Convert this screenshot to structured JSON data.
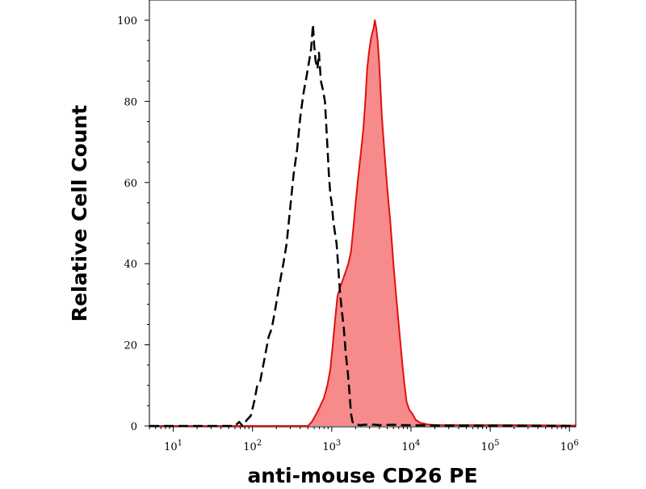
{
  "chart_data": {
    "type": "area",
    "xlabel": "anti-mouse CD26 PE",
    "ylabel": "Relative Cell Count",
    "x_scale": "log",
    "xlim": [
      5,
      1200000
    ],
    "ylim": [
      0,
      100
    ],
    "y_ticks": [
      0,
      20,
      40,
      60,
      80,
      100
    ],
    "x_ticks": [
      {
        "value": 10,
        "base": "10",
        "exp": "1"
      },
      {
        "value": 100,
        "base": "10",
        "exp": "2"
      },
      {
        "value": 1000,
        "base": "10",
        "exp": "3"
      },
      {
        "value": 10000,
        "base": "10",
        "exp": "4"
      },
      {
        "value": 100000,
        "base": "10",
        "exp": "5"
      },
      {
        "value": 1000000,
        "base": "10",
        "exp": "6"
      }
    ],
    "grid": false,
    "colors": {
      "stained_fill": "#f78a8a",
      "stained_line": "#e01010",
      "control_line": "#000000"
    },
    "series": [
      {
        "style": "dashed-outline",
        "points": [
          [
            5,
            0
          ],
          [
            60,
            0
          ],
          [
            68,
            1
          ],
          [
            75,
            0
          ],
          [
            85,
            1.5
          ],
          [
            95,
            2.5
          ],
          [
            105,
            6
          ],
          [
            115,
            10
          ],
          [
            125,
            11
          ],
          [
            140,
            16
          ],
          [
            160,
            22
          ],
          [
            175,
            24
          ],
          [
            195,
            29
          ],
          [
            215,
            34
          ],
          [
            245,
            40
          ],
          [
            270,
            45
          ],
          [
            300,
            54
          ],
          [
            330,
            62
          ],
          [
            365,
            68
          ],
          [
            400,
            76
          ],
          [
            440,
            82
          ],
          [
            480,
            86
          ],
          [
            520,
            90
          ],
          [
            550,
            93
          ],
          [
            580,
            99
          ],
          [
            600,
            94
          ],
          [
            625,
            90
          ],
          [
            660,
            88
          ],
          [
            690,
            92
          ],
          [
            730,
            85
          ],
          [
            770,
            83
          ],
          [
            820,
            80
          ],
          [
            870,
            71
          ],
          [
            920,
            62
          ],
          [
            960,
            57
          ],
          [
            1000,
            55
          ],
          [
            1040,
            51
          ],
          [
            1090,
            48
          ],
          [
            1150,
            45
          ],
          [
            1200,
            40
          ],
          [
            1270,
            33
          ],
          [
            1330,
            29
          ],
          [
            1420,
            24
          ],
          [
            1500,
            18
          ],
          [
            1600,
            13
          ],
          [
            1680,
            8
          ],
          [
            1750,
            3
          ],
          [
            1830,
            1
          ],
          [
            1950,
            0.4
          ],
          [
            2300,
            0.2
          ],
          [
            3000,
            0.4
          ],
          [
            4000,
            0.2
          ],
          [
            6000,
            0.3
          ],
          [
            8000,
            0.2
          ],
          [
            1200000,
            0
          ]
        ]
      },
      {
        "style": "filled",
        "points": [
          [
            5,
            0
          ],
          [
            500,
            0
          ],
          [
            560,
            1
          ],
          [
            640,
            3
          ],
          [
            720,
            5
          ],
          [
            800,
            7
          ],
          [
            880,
            10
          ],
          [
            960,
            14
          ],
          [
            1030,
            20
          ],
          [
            1100,
            26
          ],
          [
            1180,
            32
          ],
          [
            1270,
            34
          ],
          [
            1380,
            36
          ],
          [
            1500,
            38
          ],
          [
            1620,
            40
          ],
          [
            1750,
            43
          ],
          [
            1880,
            49
          ],
          [
            2000,
            55
          ],
          [
            2150,
            61
          ],
          [
            2320,
            67
          ],
          [
            2500,
            73
          ],
          [
            2650,
            80
          ],
          [
            2800,
            88
          ],
          [
            2950,
            92
          ],
          [
            3100,
            95
          ],
          [
            3250,
            97
          ],
          [
            3380,
            98
          ],
          [
            3500,
            100
          ],
          [
            3650,
            98
          ],
          [
            3800,
            95
          ],
          [
            3950,
            90
          ],
          [
            4100,
            84
          ],
          [
            4300,
            76
          ],
          [
            4600,
            68
          ],
          [
            5000,
            59
          ],
          [
            5500,
            50
          ],
          [
            6000,
            40
          ],
          [
            6500,
            32
          ],
          [
            7000,
            25
          ],
          [
            7400,
            20
          ],
          [
            7800,
            15
          ],
          [
            8300,
            10
          ],
          [
            8800,
            6
          ],
          [
            9500,
            4
          ],
          [
            10400,
            3
          ],
          [
            11500,
            1.5
          ],
          [
            13000,
            0.8
          ],
          [
            16000,
            0.4
          ],
          [
            20000,
            0.2
          ],
          [
            50000,
            0.2
          ],
          [
            200000,
            0.2
          ],
          [
            1200000,
            0.1
          ]
        ]
      }
    ]
  }
}
